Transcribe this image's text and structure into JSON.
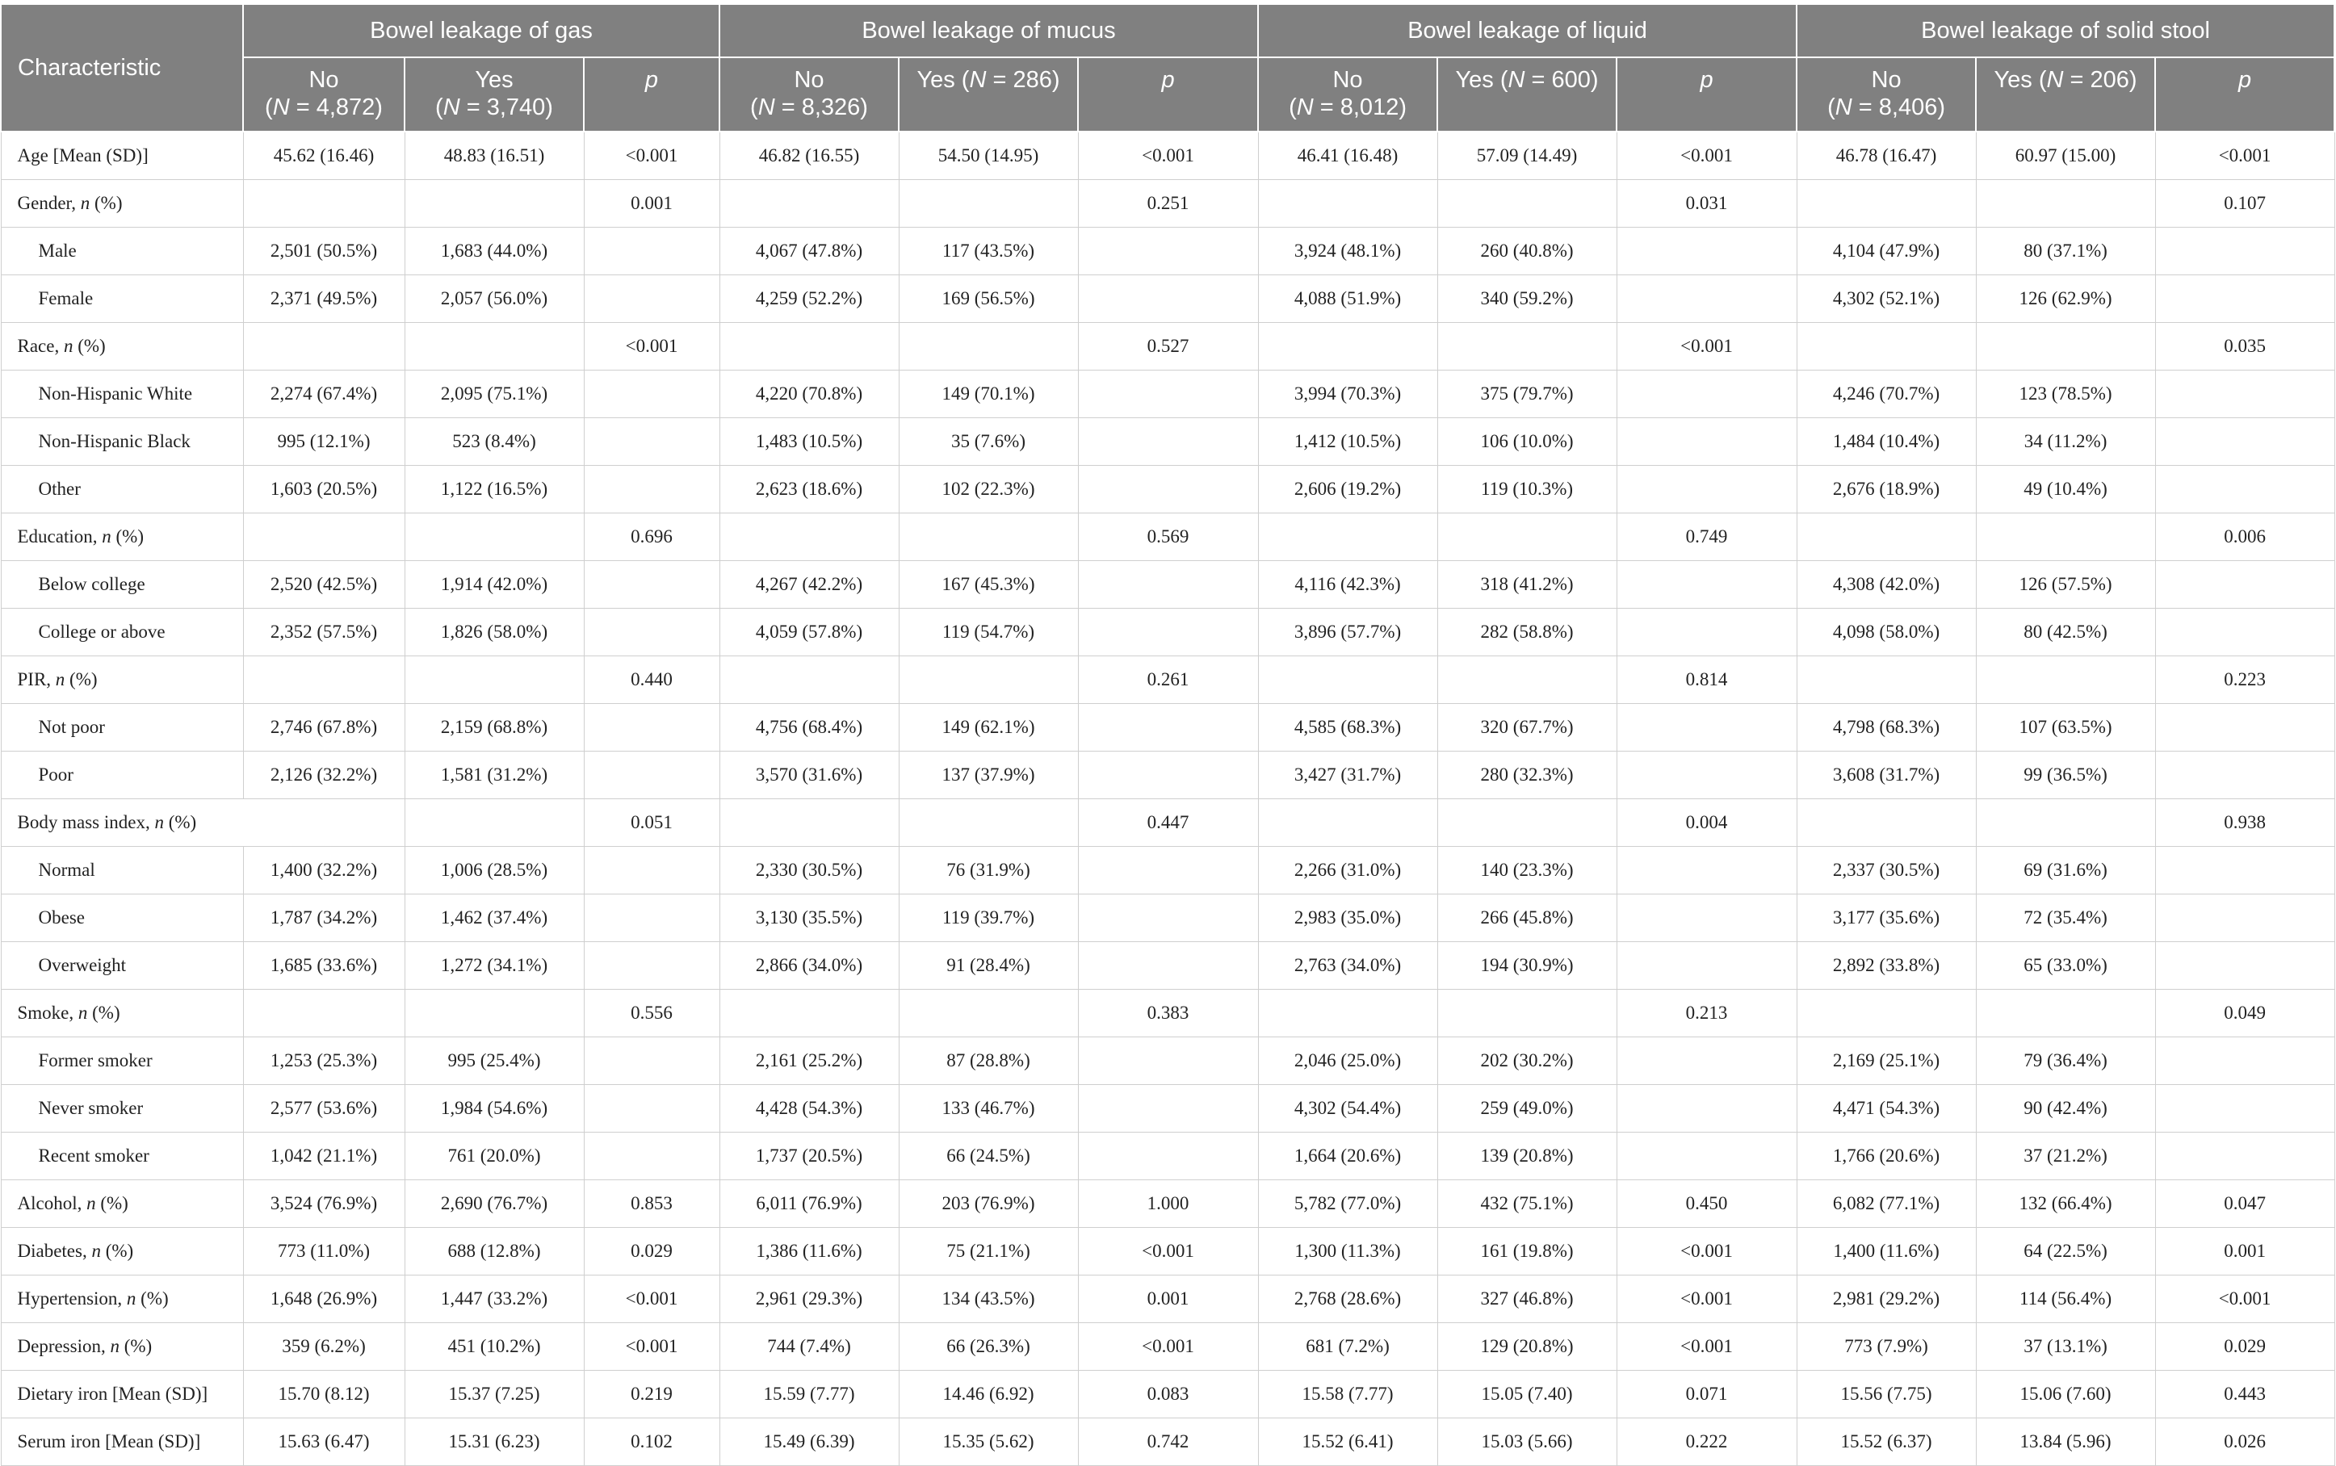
{
  "table": {
    "header": {
      "characteristic": "Characteristic",
      "groups": [
        {
          "title": "Bowel leakage of gas",
          "no_label": "No",
          "no_n": "4,872",
          "yes_label": "Yes",
          "yes_n": "3,740",
          "p_label": "p"
        },
        {
          "title": "Bowel leakage of mucus",
          "no_label": "No",
          "no_n": "8,326",
          "yes_label": "Yes",
          "yes_n": "286",
          "p_label": "p"
        },
        {
          "title": "Bowel leakage of liquid",
          "no_label": "No",
          "no_n": "8,012",
          "yes_label": "Yes",
          "yes_n": "600",
          "p_label": "p"
        },
        {
          "title": "Bowel leakage of solid stool",
          "no_label": "No",
          "no_n": "8,406",
          "yes_label": "Yes",
          "yes_n": "206",
          "p_label": "p"
        }
      ]
    },
    "rows": [
      {
        "label": "Age [Mean (SD)]",
        "cells": [
          "45.62 (16.46)",
          "48.83 (16.51)",
          "<0.001",
          "46.82 (16.55)",
          "54.50 (14.95)",
          "<0.001",
          "46.41 (16.48)",
          "57.09 (14.49)",
          "<0.001",
          "46.78 (16.47)",
          "60.97 (15.00)",
          "<0.001"
        ]
      },
      {
        "label": "Gender, ",
        "label_n": "n",
        "label_tail": " (%)",
        "cells": [
          "",
          "",
          "0.001",
          "",
          "",
          "0.251",
          "",
          "",
          "0.031",
          "",
          "",
          "0.107"
        ]
      },
      {
        "label": "Male",
        "indent": true,
        "cells": [
          "2,501 (50.5%)",
          "1,683 (44.0%)",
          "",
          "4,067 (47.8%)",
          "117 (43.5%)",
          "",
          "3,924 (48.1%)",
          "260 (40.8%)",
          "",
          "4,104 (47.9%)",
          "80 (37.1%)",
          ""
        ]
      },
      {
        "label": "Female",
        "indent": true,
        "cells": [
          "2,371 (49.5%)",
          "2,057 (56.0%)",
          "",
          "4,259 (52.2%)",
          "169 (56.5%)",
          "",
          "4,088 (51.9%)",
          "340 (59.2%)",
          "",
          "4,302 (52.1%)",
          "126 (62.9%)",
          ""
        ]
      },
      {
        "label": "Race, ",
        "label_n": "n",
        "label_tail": " (%)",
        "cells": [
          "",
          "",
          "<0.001",
          "",
          "",
          "0.527",
          "",
          "",
          "<0.001",
          "",
          "",
          "0.035"
        ]
      },
      {
        "label": "Non-Hispanic White",
        "indent": true,
        "cells": [
          "2,274 (67.4%)",
          "2,095 (75.1%)",
          "",
          "4,220 (70.8%)",
          "149 (70.1%)",
          "",
          "3,994 (70.3%)",
          "375 (79.7%)",
          "",
          "4,246 (70.7%)",
          "123 (78.5%)",
          ""
        ]
      },
      {
        "label": "Non-Hispanic Black",
        "indent": true,
        "cells": [
          "995 (12.1%)",
          "523 (8.4%)",
          "",
          "1,483 (10.5%)",
          "35 (7.6%)",
          "",
          "1,412 (10.5%)",
          "106 (10.0%)",
          "",
          "1,484 (10.4%)",
          "34 (11.2%)",
          ""
        ]
      },
      {
        "label": "Other",
        "indent": true,
        "cells": [
          "1,603 (20.5%)",
          "1,122 (16.5%)",
          "",
          "2,623 (18.6%)",
          "102 (22.3%)",
          "",
          "2,606 (19.2%)",
          "119 (10.3%)",
          "",
          "2,676 (18.9%)",
          "49 (10.4%)",
          ""
        ]
      },
      {
        "label": "Education, ",
        "label_n": "n",
        "label_tail": " (%)",
        "cells": [
          "",
          "",
          "0.696",
          "",
          "",
          "0.569",
          "",
          "",
          "0.749",
          "",
          "",
          "0.006"
        ]
      },
      {
        "label": "Below college",
        "indent": true,
        "cells": [
          "2,520 (42.5%)",
          "1,914 (42.0%)",
          "",
          "4,267 (42.2%)",
          "167 (45.3%)",
          "",
          "4,116 (42.3%)",
          "318 (41.2%)",
          "",
          "4,308 (42.0%)",
          "126 (57.5%)",
          ""
        ]
      },
      {
        "label": "College or above",
        "indent": true,
        "cells": [
          "2,352 (57.5%)",
          "1,826 (58.0%)",
          "",
          "4,059 (57.8%)",
          "119 (54.7%)",
          "",
          "3,896 (57.7%)",
          "282 (58.8%)",
          "",
          "4,098 (58.0%)",
          "80 (42.5%)",
          ""
        ]
      },
      {
        "label": "PIR, ",
        "label_n": "n",
        "label_tail": " (%)",
        "cells": [
          "",
          "",
          "0.440",
          "",
          "",
          "0.261",
          "",
          "",
          "0.814",
          "",
          "",
          "0.223"
        ]
      },
      {
        "label": "Not poor",
        "indent": true,
        "cells": [
          "2,746 (67.8%)",
          "2,159 (68.8%)",
          "",
          "4,756 (68.4%)",
          "149 (62.1%)",
          "",
          "4,585 (68.3%)",
          "320 (67.7%)",
          "",
          "4,798 (68.3%)",
          "107 (63.5%)",
          ""
        ]
      },
      {
        "label": "Poor",
        "indent": true,
        "cells": [
          "2,126 (32.2%)",
          "1,581 (31.2%)",
          "",
          "3,570 (31.6%)",
          "137 (37.9%)",
          "",
          "3,427 (31.7%)",
          "280 (32.3%)",
          "",
          "3,608 (31.7%)",
          "99 (36.5%)",
          ""
        ]
      },
      {
        "label": "Body mass index, ",
        "label_n": "n",
        "label_tail": " (%)",
        "span": true,
        "cells": [
          "",
          "",
          "0.051",
          "",
          "",
          "0.447",
          "",
          "",
          "0.004",
          "",
          "",
          "0.938"
        ]
      },
      {
        "label": "Normal",
        "indent": true,
        "cells": [
          "1,400 (32.2%)",
          "1,006 (28.5%)",
          "",
          "2,330 (30.5%)",
          "76 (31.9%)",
          "",
          "2,266 (31.0%)",
          "140 (23.3%)",
          "",
          "2,337 (30.5%)",
          "69 (31.6%)",
          ""
        ]
      },
      {
        "label": "Obese",
        "indent": true,
        "cells": [
          "1,787 (34.2%)",
          "1,462 (37.4%)",
          "",
          "3,130 (35.5%)",
          "119 (39.7%)",
          "",
          "2,983 (35.0%)",
          "266 (45.8%)",
          "",
          "3,177 (35.6%)",
          "72 (35.4%)",
          ""
        ]
      },
      {
        "label": "Overweight",
        "indent": true,
        "cells": [
          "1,685 (33.6%)",
          "1,272 (34.1%)",
          "",
          "2,866 (34.0%)",
          "91 (28.4%)",
          "",
          "2,763 (34.0%)",
          "194 (30.9%)",
          "",
          "2,892 (33.8%)",
          "65 (33.0%)",
          ""
        ]
      },
      {
        "label": "Smoke, ",
        "label_n": "n",
        "label_tail": " (%)",
        "cells": [
          "",
          "",
          "0.556",
          "",
          "",
          "0.383",
          "",
          "",
          "0.213",
          "",
          "",
          "0.049"
        ]
      },
      {
        "label": "Former smoker",
        "indent": true,
        "cells": [
          "1,253 (25.3%)",
          "995 (25.4%)",
          "",
          "2,161 (25.2%)",
          "87 (28.8%)",
          "",
          "2,046 (25.0%)",
          "202 (30.2%)",
          "",
          "2,169 (25.1%)",
          "79 (36.4%)",
          ""
        ]
      },
      {
        "label": "Never smoker",
        "indent": true,
        "cells": [
          "2,577 (53.6%)",
          "1,984 (54.6%)",
          "",
          "4,428 (54.3%)",
          "133 (46.7%)",
          "",
          "4,302 (54.4%)",
          "259 (49.0%)",
          "",
          "4,471 (54.3%)",
          "90 (42.4%)",
          ""
        ]
      },
      {
        "label": "Recent smoker",
        "indent": true,
        "cells": [
          "1,042 (21.1%)",
          "761 (20.0%)",
          "",
          "1,737 (20.5%)",
          "66 (24.5%)",
          "",
          "1,664 (20.6%)",
          "139 (20.8%)",
          "",
          "1,766 (20.6%)",
          "37 (21.2%)",
          ""
        ]
      },
      {
        "label": "Alcohol, ",
        "label_n": "n",
        "label_tail": " (%)",
        "cells": [
          "3,524 (76.9%)",
          "2,690 (76.7%)",
          "0.853",
          "6,011 (76.9%)",
          "203 (76.9%)",
          "1.000",
          "5,782 (77.0%)",
          "432 (75.1%)",
          "0.450",
          "6,082 (77.1%)",
          "132 (66.4%)",
          "0.047"
        ]
      },
      {
        "label": "Diabetes, ",
        "label_n": "n",
        "label_tail": " (%)",
        "cells": [
          "773 (11.0%)",
          "688 (12.8%)",
          "0.029",
          "1,386 (11.6%)",
          "75 (21.1%)",
          "<0.001",
          "1,300 (11.3%)",
          "161 (19.8%)",
          "<0.001",
          "1,400 (11.6%)",
          "64 (22.5%)",
          "0.001"
        ]
      },
      {
        "label": "Hypertension, ",
        "label_n": "n",
        "label_tail": " (%)",
        "cells": [
          "1,648 (26.9%)",
          "1,447 (33.2%)",
          "<0.001",
          "2,961 (29.3%)",
          "134 (43.5%)",
          "0.001",
          "2,768 (28.6%)",
          "327 (46.8%)",
          "<0.001",
          "2,981 (29.2%)",
          "114 (56.4%)",
          "<0.001"
        ]
      },
      {
        "label": "Depression, ",
        "label_n": "n",
        "label_tail": " (%)",
        "cells": [
          "359 (6.2%)",
          "451 (10.2%)",
          "<0.001",
          "744 (7.4%)",
          "66 (26.3%)",
          "<0.001",
          "681 (7.2%)",
          "129 (20.8%)",
          "<0.001",
          "773 (7.9%)",
          "37 (13.1%)",
          "0.029"
        ]
      },
      {
        "label": "Dietary iron [Mean (SD)]",
        "cells": [
          "15.70 (8.12)",
          "15.37 (7.25)",
          "0.219",
          "15.59 (7.77)",
          "14.46 (6.92)",
          "0.083",
          "15.58 (7.77)",
          "15.05 (7.40)",
          "0.071",
          "15.56 (7.75)",
          "15.06 (7.60)",
          "0.443"
        ]
      },
      {
        "label": "Serum iron [Mean (SD)]",
        "cells": [
          "15.63 (6.47)",
          "15.31 (6.23)",
          "0.102",
          "15.49 (6.39)",
          "15.35 (5.62)",
          "0.742",
          "15.52 (6.41)",
          "15.03 (5.66)",
          "0.222",
          "15.52 (6.37)",
          "13.84 (5.96)",
          "0.026"
        ]
      }
    ]
  }
}
